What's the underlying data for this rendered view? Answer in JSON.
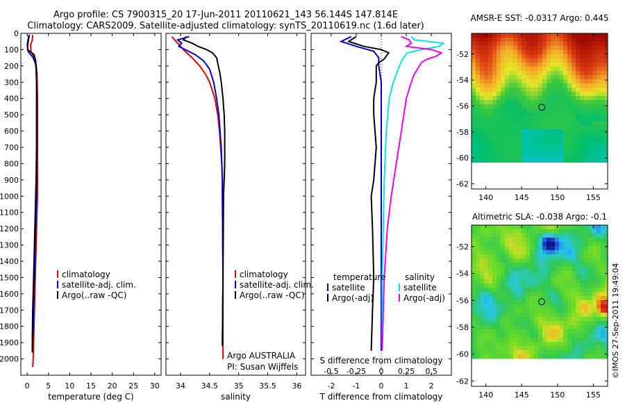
{
  "header": {
    "line1": "Argo profile: CS 7900315_20 17-Jun-2011 20110621_143 56.144S 147.814E",
    "line2": "Climatology: CARS2009. Satellite-adjusted climatology: synTS_20110619.nc (1.6d later)"
  },
  "colors": {
    "climatology": "#e00000",
    "satellite": "#0000cc",
    "argo": "#000000",
    "salinity_sat": "#00e5ee",
    "salinity_argo": "#ee00ee"
  },
  "chart_data": [
    {
      "type": "line",
      "panel": "temperature",
      "xlabel": "temperature (deg C)",
      "xticks": [
        "0",
        "5",
        "10",
        "15",
        "20",
        "25",
        "30"
      ],
      "ylim": [
        2100,
        0
      ],
      "yticks": [
        "0",
        "100",
        "200",
        "300",
        "400",
        "500",
        "600",
        "700",
        "800",
        "900",
        "1000",
        "1100",
        "1200",
        "1300",
        "1400",
        "1500",
        "1600",
        "1700",
        "1800",
        "1900",
        "2000"
      ],
      "legend": [
        "climatology",
        "satellite-adj. clim.",
        "Argo(..raw -QC)"
      ],
      "series": [
        {
          "name": "climatology",
          "y": [
            10,
            40,
            70,
            110,
            150,
            190,
            250,
            400,
            600,
            800,
            1000,
            1200,
            1400,
            1600,
            1800,
            2000,
            2050
          ],
          "x": [
            1.3,
            1.2,
            0.8,
            0.9,
            1.6,
            2.1,
            2.3,
            2.4,
            2.4,
            2.4,
            2.4,
            2.2,
            2.0,
            1.8,
            1.6,
            1.4,
            1.3
          ]
        },
        {
          "name": "satellite-adj. clim.",
          "y": [
            10,
            40,
            70,
            110,
            150,
            190,
            250,
            400,
            600,
            800,
            1000,
            1200,
            1400,
            1600,
            1800,
            1960
          ],
          "x": [
            0.4,
            0.2,
            0.0,
            0.2,
            1.4,
            2.0,
            2.2,
            2.3,
            2.3,
            2.3,
            2.2,
            2.0,
            1.8,
            1.6,
            1.4,
            1.2
          ]
        },
        {
          "name": "Argo(..raw -QC)",
          "y": [
            10,
            40,
            70,
            100,
            130,
            170,
            220,
            300,
            500,
            700,
            900,
            1100,
            1300,
            1500,
            1700,
            1900,
            1960
          ],
          "x": [
            0.5,
            0.3,
            0.1,
            0.1,
            1.6,
            2.0,
            2.1,
            2.2,
            2.2,
            2.2,
            2.1,
            1.9,
            1.7,
            1.5,
            1.3,
            1.2,
            1.2
          ]
        }
      ]
    },
    {
      "type": "line",
      "panel": "salinity",
      "xlabel": "salinity",
      "xticks": [
        "34",
        "34.5",
        "35",
        "35.5",
        "36"
      ],
      "ylim": [
        2100,
        0
      ],
      "legend": [
        "climatology",
        "satellite-adj. clim.",
        "Argo(..raw -QC)"
      ],
      "annotation": [
        "Argo AUSTRALIA",
        "PI: Susan Wijffels"
      ],
      "series": [
        {
          "name": "climatology",
          "y": [
            20,
            60,
            100,
            150,
            200,
            250,
            300,
            400,
            500,
            600,
            700,
            800,
            900,
            1000,
            1500,
            2000
          ],
          "x": [
            33.85,
            33.95,
            34.05,
            34.2,
            34.33,
            34.43,
            34.5,
            34.59,
            34.64,
            34.67,
            34.69,
            34.71,
            34.72,
            34.72,
            34.73,
            34.73
          ]
        },
        {
          "name": "satellite-adj. clim.",
          "y": [
            20,
            40,
            60,
            80,
            100,
            130,
            170,
            220,
            300,
            400,
            500,
            600,
            700,
            800,
            900,
            1000,
            1500,
            1920
          ],
          "x": [
            34.15,
            33.95,
            34.02,
            33.97,
            34.08,
            34.25,
            34.4,
            34.5,
            34.57,
            34.62,
            34.66,
            34.68,
            34.7,
            34.71,
            34.72,
            34.72,
            34.73,
            34.72
          ]
        },
        {
          "name": "Argo(..raw -QC)",
          "y": [
            20,
            40,
            60,
            80,
            100,
            120,
            150,
            200,
            250,
            300,
            400,
            500,
            600,
            700,
            800,
            900,
            1000,
            1500,
            1920
          ],
          "x": [
            34.1,
            34.05,
            34.2,
            34.3,
            34.45,
            34.55,
            34.62,
            34.65,
            34.68,
            34.7,
            34.73,
            34.75,
            34.76,
            34.76,
            34.76,
            34.75,
            34.74,
            34.73,
            34.72
          ]
        }
      ]
    },
    {
      "type": "line",
      "panel": "differences",
      "xlabel": "T difference from climatology",
      "xticks": [
        "-2",
        "-1",
        "0",
        "1",
        "2"
      ],
      "xlabel_top": "S difference from climatology",
      "xticks_top": [
        "-0.5",
        "-0.25",
        "0",
        "0.25",
        "0.5"
      ],
      "ylim": [
        2100,
        0
      ],
      "legend": [
        "temperature",
        "satellite",
        "Argo(-adj)",
        "salinity",
        "satellite",
        "Argo(-adj)"
      ],
      "series": [
        {
          "name": "temperature satellite",
          "y": [
            20,
            50,
            80,
            110,
            150,
            200,
            300,
            500,
            800,
            1000,
            1500,
            1950
          ],
          "x": [
            -1.2,
            -1.6,
            -1.0,
            -0.3,
            -0.1,
            -0.1,
            0.0,
            0.0,
            0.0,
            0.0,
            0.0,
            0.0
          ]
        },
        {
          "name": "temperature Argo(-adj)",
          "y": [
            20,
            50,
            80,
            100,
            120,
            140,
            160,
            180,
            200,
            300,
            400,
            500,
            700,
            900,
            1000,
            1200,
            1500,
            1700,
            1950
          ],
          "x": [
            -1.0,
            -1.3,
            -0.7,
            0.0,
            0.3,
            0.2,
            0.1,
            -0.1,
            -0.2,
            -0.2,
            -0.3,
            -0.3,
            -0.2,
            -0.3,
            -0.4,
            -0.35,
            -0.3,
            -0.35,
            -0.4
          ]
        },
        {
          "name": "salinity satellite",
          "y": [
            20,
            40,
            60,
            80,
            100,
            120,
            150,
            200,
            300,
            400,
            600,
            900,
            1200,
            1500,
            1950
          ],
          "x": [
            0.3,
            0.33,
            0.62,
            0.58,
            0.4,
            0.26,
            0.22,
            0.18,
            0.12,
            0.08,
            0.05,
            0.03,
            0.02,
            0.01,
            0.01
          ]
        },
        {
          "name": "salinity Argo(-adj)",
          "y": [
            20,
            40,
            60,
            80,
            100,
            120,
            140,
            160,
            180,
            200,
            250,
            300,
            400,
            600,
            800,
            1000,
            1200,
            1500,
            1950
          ],
          "x": [
            0.2,
            0.28,
            0.3,
            0.25,
            0.5,
            0.6,
            0.55,
            0.45,
            0.4,
            0.38,
            0.33,
            0.3,
            0.25,
            0.2,
            0.15,
            0.1,
            0.06,
            0.03,
            0.01
          ]
        }
      ]
    },
    {
      "type": "heatmap",
      "panel": "sst-map",
      "title": "AMSR-E SST: -0.0317 Argo: 0.445",
      "xticks": [
        "140",
        "145",
        "150",
        "155"
      ],
      "yticks": [
        "-52",
        "-54",
        "-56",
        "-58",
        "-60",
        "-62"
      ],
      "xlim": [
        138,
        157
      ],
      "ylim": [
        -62.4,
        -50.4
      ],
      "data_ylim": [
        -60.1,
        -50.4
      ],
      "marker": {
        "lon": 147.8,
        "lat": -56.1
      }
    },
    {
      "type": "heatmap",
      "panel": "sla-map",
      "title": "Altimetric SLA: -0.038 Argo: -0.1",
      "xticks": [
        "140",
        "145",
        "150",
        "155"
      ],
      "yticks": [
        "-52",
        "-54",
        "-56",
        "-58",
        "-60",
        "-62"
      ],
      "xlim": [
        138,
        157
      ],
      "ylim": [
        -62.4,
        -50.4
      ],
      "data_ylim": [
        -60.1,
        -50.4
      ],
      "marker": {
        "lon": 147.8,
        "lat": -56.1
      }
    }
  ],
  "footer": {
    "credit": "©IMOS 27-Sep-2011 19:49:04"
  }
}
